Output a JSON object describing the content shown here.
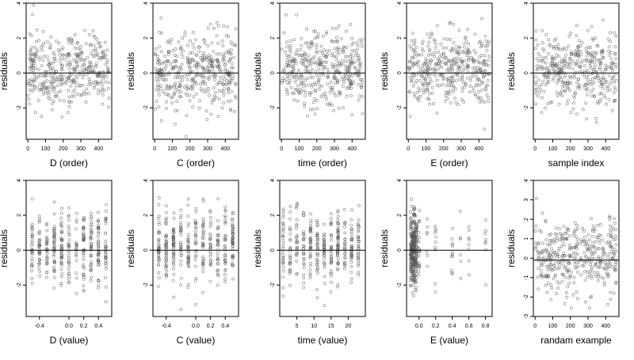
{
  "chart_data": [
    {
      "type": "scatter",
      "xlabel": "D (order)",
      "ylabel": "residuals",
      "xlim": [
        -10,
        475
      ],
      "ylim": [
        -3.8,
        4.0
      ],
      "xticks": [
        "0",
        "100",
        "200",
        "300",
        "400"
      ],
      "xtick_values": [
        0,
        100,
        200,
        300,
        400
      ],
      "yticks": [
        "-2",
        "0",
        "2",
        "4"
      ],
      "ytick_values": [
        -2,
        0,
        2,
        4
      ],
      "hline": 0,
      "points": {
        "n": 410,
        "x_min": 0,
        "x_max": 460,
        "y_mean": 0.15,
        "y_sd": 1.05,
        "seed": 11
      }
    },
    {
      "type": "scatter",
      "xlabel": "C (order)",
      "ylabel": "residuals",
      "xlim": [
        -10,
        475
      ],
      "ylim": [
        -3.8,
        4.0
      ],
      "xticks": [
        "0",
        "100",
        "200",
        "300",
        "400"
      ],
      "xtick_values": [
        0,
        100,
        200,
        300,
        400
      ],
      "yticks": [
        "-2",
        "0",
        "2",
        "4"
      ],
      "ytick_values": [
        -2,
        0,
        2,
        4
      ],
      "hline": 0,
      "points": {
        "n": 410,
        "x_min": 0,
        "x_max": 460,
        "y_mean": 0.15,
        "y_sd": 1.05,
        "seed": 23
      }
    },
    {
      "type": "scatter",
      "xlabel": "time (order)",
      "ylabel": "residuals",
      "xlim": [
        -10,
        475
      ],
      "ylim": [
        -3.8,
        4.0
      ],
      "xticks": [
        "0",
        "100",
        "200",
        "300",
        "400"
      ],
      "xtick_values": [
        0,
        100,
        200,
        300,
        400
      ],
      "yticks": [
        "-2",
        "0",
        "2",
        "4"
      ],
      "ytick_values": [
        -2,
        0,
        2,
        4
      ],
      "hline": 0,
      "points": {
        "n": 410,
        "x_min": 0,
        "x_max": 460,
        "y_mean": 0.15,
        "y_sd": 1.05,
        "seed": 37
      }
    },
    {
      "type": "scatter",
      "xlabel": "E (order)",
      "ylabel": "residuals",
      "xlim": [
        -10,
        475
      ],
      "ylim": [
        -3.8,
        4.0
      ],
      "xticks": [
        "0",
        "100",
        "200",
        "300",
        "400"
      ],
      "xtick_values": [
        0,
        100,
        200,
        300,
        400
      ],
      "yticks": [
        "-2",
        "0",
        "2",
        "4"
      ],
      "ytick_values": [
        -2,
        0,
        2,
        4
      ],
      "hline": 0,
      "points": {
        "n": 410,
        "x_min": 0,
        "x_max": 460,
        "y_mean": 0.15,
        "y_sd": 1.05,
        "seed": 41
      }
    },
    {
      "type": "scatter",
      "xlabel": "sample index",
      "ylabel": "residuals",
      "xlim": [
        -10,
        475
      ],
      "ylim": [
        -3.8,
        4.0
      ],
      "xticks": [
        "0",
        "100",
        "200",
        "300",
        "400"
      ],
      "xtick_values": [
        0,
        100,
        200,
        300,
        400
      ],
      "yticks": [
        "-2",
        "0",
        "2",
        "4"
      ],
      "ytick_values": [
        -2,
        0,
        2,
        4
      ],
      "hline": 0,
      "points": {
        "n": 410,
        "x_min": 0,
        "x_max": 460,
        "y_mean": 0.15,
        "y_sd": 1.05,
        "seed": 53
      }
    },
    {
      "type": "scatter",
      "xlabel": "D (value)",
      "ylabel": "residuals",
      "xlim": [
        -0.58,
        0.58
      ],
      "ylim": [
        -3.8,
        4.0
      ],
      "xticks": [
        "-0.4",
        "0.0",
        "0.2",
        "0.4"
      ],
      "xtick_values": [
        -0.4,
        0.0,
        0.2,
        0.4
      ],
      "yticks": [
        "-2",
        "0",
        "2",
        "4"
      ],
      "ytick_values": [
        -2,
        0,
        2,
        4
      ],
      "hline": 0,
      "points": {
        "n": 380,
        "x_levels": [
          -0.5,
          -0.4,
          -0.3,
          -0.2,
          -0.1,
          0,
          0.1,
          0.2,
          0.3,
          0.4,
          0.5
        ],
        "y_mean": 0.15,
        "y_sd": 1.05,
        "seed": 61
      }
    },
    {
      "type": "scatter",
      "xlabel": "C (value)",
      "ylabel": "residuals",
      "xlim": [
        -0.58,
        0.58
      ],
      "ylim": [
        -3.8,
        4.0
      ],
      "xticks": [
        "-0.4",
        "0.0",
        "0.2",
        "0.4"
      ],
      "xtick_values": [
        -0.4,
        0.0,
        0.2,
        0.4
      ],
      "yticks": [
        "-2",
        "0",
        "2",
        "4"
      ],
      "ytick_values": [
        -2,
        0,
        2,
        4
      ],
      "hline": 0,
      "points": {
        "n": 380,
        "x_levels": [
          -0.5,
          -0.4,
          -0.3,
          -0.2,
          -0.1,
          0,
          0.1,
          0.2,
          0.3,
          0.4,
          0.5
        ],
        "y_mean": 0.15,
        "y_sd": 1.05,
        "seed": 67
      }
    },
    {
      "type": "scatter",
      "xlabel": "time (value)",
      "ylabel": "residuals",
      "xlim": [
        0,
        25
      ],
      "ylim": [
        -3.8,
        4.0
      ],
      "xticks": [
        "5",
        "10",
        "15",
        "20"
      ],
      "xtick_values": [
        5,
        10,
        15,
        20
      ],
      "yticks": [
        "-2",
        "0",
        "2",
        "4"
      ],
      "ytick_values": [
        -2,
        0,
        2,
        4
      ],
      "hline": 0,
      "points": {
        "n": 380,
        "x_levels": [
          1,
          3,
          5,
          7,
          9,
          11,
          13,
          15,
          17,
          19,
          21,
          23
        ],
        "y_mean": 0.15,
        "y_sd": 1.05,
        "seed": 71
      }
    },
    {
      "type": "scatter",
      "xlabel": "E (value)",
      "ylabel": "residuals",
      "xlim": [
        -0.15,
        0.88
      ],
      "ylim": [
        -3.8,
        4.0
      ],
      "xticks": [
        "0.0",
        "0.2",
        "0.4",
        "0.6",
        "0.8"
      ],
      "xtick_values": [
        0,
        0.2,
        0.4,
        0.6,
        0.8
      ],
      "yticks": [
        "-2",
        "0",
        "2",
        "4"
      ],
      "ytick_values": [
        -2,
        0,
        2,
        4
      ],
      "hline": 0,
      "points": {
        "n": 380,
        "x_levels": [
          -0.1,
          -0.09,
          -0.08,
          -0.07,
          -0.06,
          -0.05,
          -0.04,
          -0.03,
          0.0,
          0.1,
          0.2,
          0.4,
          0.5,
          0.6,
          0.8
        ],
        "x_level_weights": [
          5,
          5,
          5,
          5,
          5,
          5,
          4,
          4,
          2,
          1,
          1,
          1,
          1,
          1,
          1
        ],
        "y_mean": 0.15,
        "y_sd": 1.05,
        "seed": 79
      }
    },
    {
      "type": "scatter",
      "xlabel": "randam example",
      "ylabel": "residuals",
      "xlim": [
        -10,
        475
      ],
      "ylim": [
        -3.0,
        4.0
      ],
      "xticks": [
        "0",
        "100",
        "200",
        "300",
        "400"
      ],
      "xtick_values": [
        0,
        100,
        200,
        300,
        400
      ],
      "yticks": [
        "-3",
        "-2",
        "-1",
        "0",
        "1",
        "2",
        "3",
        "4"
      ],
      "ytick_values": [
        -3,
        -2,
        -1,
        0,
        1,
        2,
        3,
        4
      ],
      "hline": -0.1,
      "points": {
        "n": 400,
        "x_min": 0,
        "x_max": 460,
        "y_mean": 0.0,
        "y_sd": 1.0,
        "seed": 97
      }
    }
  ]
}
